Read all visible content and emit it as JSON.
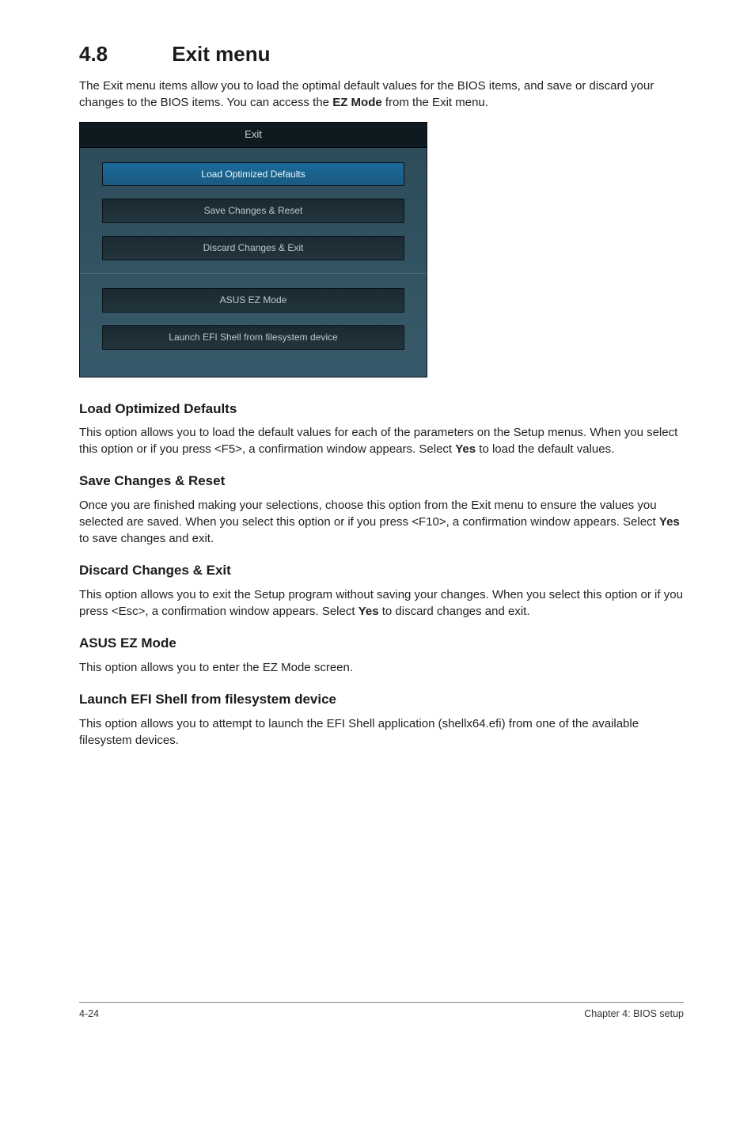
{
  "section": {
    "number": "4.8",
    "title": "Exit menu",
    "intro_a": "The Exit menu items allow you to load the optimal default values for the BIOS items, and save or discard your changes to the BIOS items. You can access the ",
    "intro_bold": "EZ Mode",
    "intro_b": " from the Exit menu."
  },
  "bios": {
    "header": "Exit",
    "buttons_top": [
      {
        "label": "Load Optimized Defaults",
        "selected": true
      },
      {
        "label": "Save Changes & Reset",
        "selected": false
      },
      {
        "label": "Discard Changes & Exit",
        "selected": false
      }
    ],
    "buttons_bottom": [
      {
        "label": "ASUS EZ Mode",
        "selected": false
      },
      {
        "label": "Launch EFI Shell from filesystem device",
        "selected": false
      }
    ]
  },
  "subs": {
    "s1": {
      "title": "Load Optimized Defaults",
      "body_a": "This option allows you to load the default values for each of the parameters on the Setup menus. When you select this option or if you press <F5>, a confirmation window appears. Select ",
      "bold": "Yes",
      "body_b": " to load the default values."
    },
    "s2": {
      "title": "Save Changes & Reset",
      "body_a": "Once you are finished making your selections, choose this option from the Exit menu to ensure the values you selected are saved. When you select this option or if you press <F10>, a confirmation window appears. Select ",
      "bold": "Yes",
      "body_b": " to save changes and exit."
    },
    "s3": {
      "title": "Discard Changes & Exit",
      "body_a": "This option allows you to exit the Setup program without saving your changes. When you select this option or if you press <Esc>, a confirmation window appears. Select ",
      "bold": "Yes",
      "body_b": " to discard changes and exit."
    },
    "s4": {
      "title": "ASUS EZ Mode",
      "body": "This option allows you to enter the EZ Mode screen."
    },
    "s5": {
      "title": "Launch EFI Shell from filesystem device",
      "body": "This option allows you to attempt to launch the EFI Shell application (shellx64.efi) from one of the available filesystem devices."
    }
  },
  "footer": {
    "left": "4-24",
    "right": "Chapter 4: BIOS setup"
  }
}
